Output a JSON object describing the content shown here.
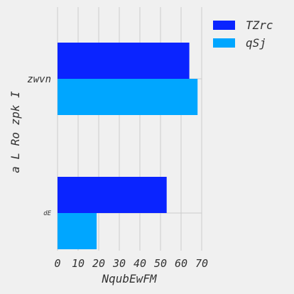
{
  "chart_data": {
    "type": "bar",
    "orientation": "horizontal",
    "title": "",
    "xlabel": "NqubEwFM",
    "ylabel": "a L Ro zpk I",
    "categories": [
      "zwvn",
      "dE"
    ],
    "series": [
      {
        "name": "TZrc",
        "values": [
          64,
          53
        ],
        "color": "#0a24ff"
      },
      {
        "name": "qSj",
        "values": [
          68,
          19
        ],
        "color": "#00a6ff"
      }
    ],
    "xlim": [
      0,
      70
    ],
    "xticks": [
      "0",
      "10",
      "20",
      "30",
      "40",
      "50",
      "60",
      "70"
    ],
    "grid": true,
    "legend_position": "top-right",
    "background": "#f0f0f0",
    "grid_color": "#cbcbcb"
  }
}
